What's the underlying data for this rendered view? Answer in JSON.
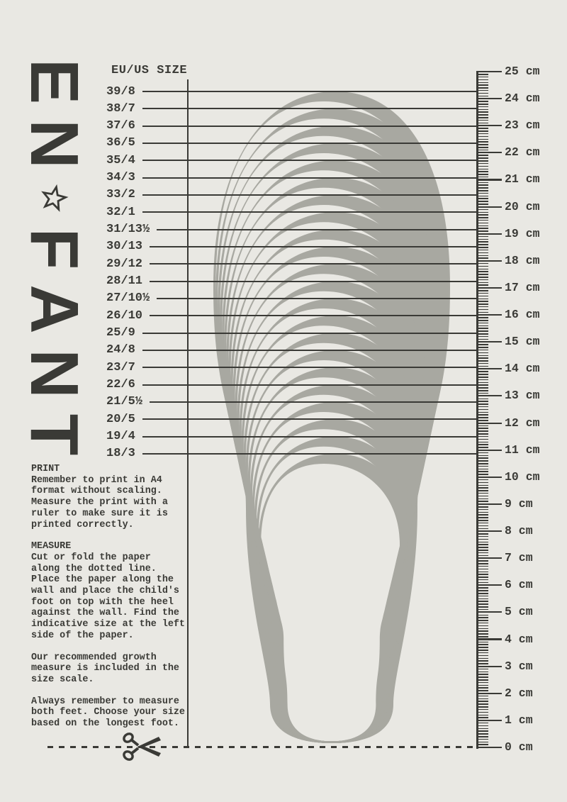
{
  "colors": {
    "background": "#e9e8e3",
    "ink": "#3a3a36",
    "band": "#a8a8a1"
  },
  "brand": {
    "name": "EN FANT",
    "stack": [
      "E",
      "N",
      "★",
      "F",
      "A",
      "N",
      "T"
    ],
    "star_icon": "star-outline"
  },
  "size_column": {
    "header": "EU/US SIZE",
    "sizes": [
      "39/8",
      "38/7",
      "37/6",
      "36/5",
      "35/4",
      "34/3",
      "33/2",
      "32/1",
      "31/13½",
      "30/13",
      "29/12",
      "28/11",
      "27/10½",
      "26/10",
      "25/9",
      "24/8",
      "23/7",
      "22/6",
      "21/5½",
      "20/5",
      "19/4",
      "18/3"
    ]
  },
  "ruler": {
    "unit": "cm",
    "max_cm": 25,
    "min_cm": 0,
    "labels": [
      "25 cm",
      "24 cm",
      "23 cm",
      "22 cm",
      "21 cm",
      "20 cm",
      "19 cm",
      "18 cm",
      "17 cm",
      "16 cm",
      "15 cm",
      "14 cm",
      "13 cm",
      "12 cm",
      "11 cm",
      "10 cm",
      "9 cm",
      "8 cm",
      "7 cm",
      "6 cm",
      "5 cm",
      "4 cm",
      "3 cm",
      "2 cm",
      "1 cm",
      "0 cm"
    ]
  },
  "instructions": {
    "print_heading": "PRINT",
    "print_body": "Remember to print in A4\nformat without scaling.\nMeasure the print with a\nruler to make sure it is\nprinted correctly.",
    "measure_heading": "MEASURE",
    "measure_body": "Cut or fold the paper\nalong the dotted line.\nPlace the paper along the\nwall and place the child's\nfoot on top with the heel\nagainst the wall. Find the\nindicative size at the left\nside of the paper.",
    "growth_note": "Our recommended growth\nmeasure is included in the\nsize scale.",
    "feet_note": "Always remember to measure\nboth feet. Choose your size\nbased on the longest foot."
  },
  "icons": {
    "scissors": "scissors-cut",
    "star": "star-outline"
  }
}
